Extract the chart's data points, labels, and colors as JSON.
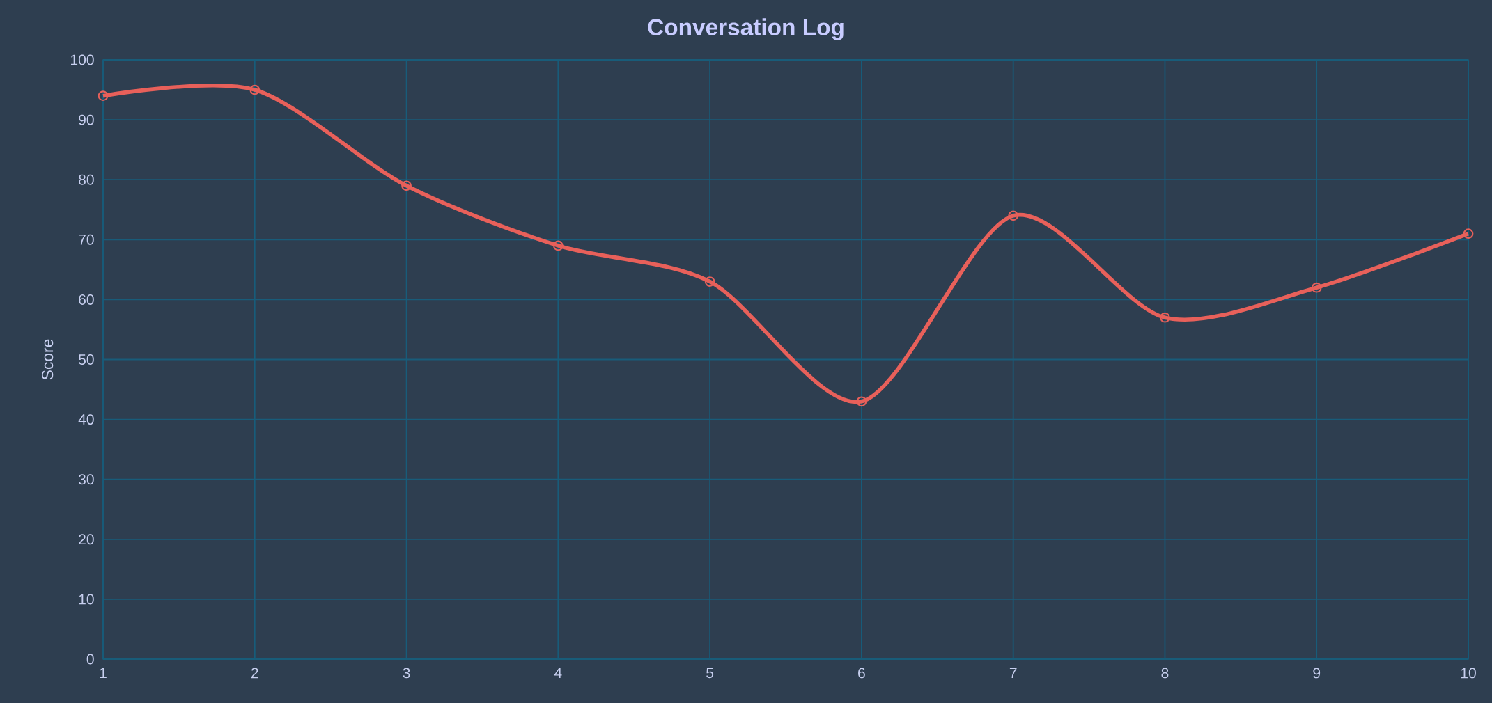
{
  "chart_data": {
    "type": "line",
    "title": "Conversation Log",
    "ylabel": "Score",
    "categories": [
      "1",
      "2",
      "3",
      "4",
      "5",
      "6",
      "7",
      "8",
      "9",
      "10"
    ],
    "series": [
      {
        "color": "#e8605a",
        "values": [
          94,
          95,
          79,
          69,
          63,
          43,
          74,
          57,
          62,
          71
        ]
      }
    ],
    "ylim": [
      0,
      100
    ],
    "yticks": [
      0,
      10,
      20,
      30,
      40,
      50,
      60,
      70,
      80,
      90,
      100
    ],
    "grid": true,
    "marker": "circle",
    "line_style": "solid"
  }
}
